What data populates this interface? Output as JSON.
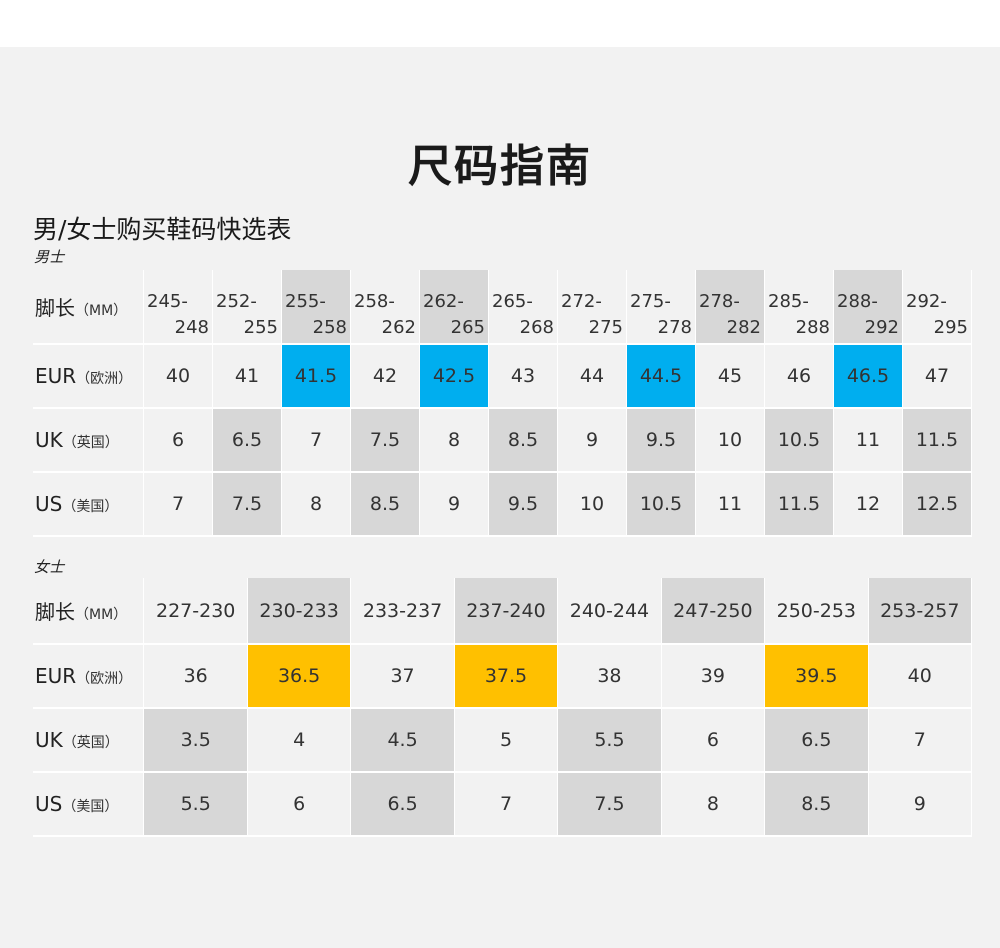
{
  "title": "尺码指南",
  "subtitle": "男/女士购买鞋码快选表",
  "men": {
    "label": "男士",
    "rows": [
      {
        "name": "脚长",
        "unit": "（MM）",
        "cells": [
          [
            "245-",
            "248"
          ],
          [
            "252-",
            "255"
          ],
          [
            "255-",
            "258"
          ],
          [
            "258-",
            "262"
          ],
          [
            "262-",
            "265"
          ],
          [
            "265-",
            "268"
          ],
          [
            "272-",
            "275"
          ],
          [
            "275-",
            "278"
          ],
          [
            "278-",
            "282"
          ],
          [
            "285-",
            "288"
          ],
          [
            "288-",
            "292"
          ],
          [
            "292-",
            "295"
          ]
        ]
      },
      {
        "name": "EUR",
        "unit": "（欧洲）",
        "cells": [
          "40",
          "41",
          "41.5",
          "42",
          "42.5",
          "43",
          "44",
          "44.5",
          "45",
          "46",
          "46.5",
          "47"
        ]
      },
      {
        "name": "UK",
        "unit": "（英国）",
        "cells": [
          "6",
          "6.5",
          "7",
          "7.5",
          "8",
          "8.5",
          "9",
          "9.5",
          "10",
          "10.5",
          "11",
          "11.5"
        ]
      },
      {
        "name": "US",
        "unit": "（美国）",
        "cells": [
          "7",
          "7.5",
          "8",
          "8.5",
          "9",
          "9.5",
          "10",
          "10.5",
          "11",
          "11.5",
          "12",
          "12.5"
        ]
      }
    ]
  },
  "women": {
    "label": "女士",
    "rows": [
      {
        "name": "脚长",
        "unit": "（MM）",
        "cells": [
          "227-230",
          "230-233",
          "233-237",
          "237-240",
          "240-244",
          "247-250",
          "250-253",
          "253-257"
        ]
      },
      {
        "name": "EUR",
        "unit": "（欧洲）",
        "cells": [
          "36",
          "36.5",
          "37",
          "37.5",
          "38",
          "39",
          "39.5",
          "40"
        ]
      },
      {
        "name": "UK",
        "unit": "（英国）",
        "cells": [
          "3.5",
          "4",
          "4.5",
          "5",
          "5.5",
          "6",
          "6.5",
          "7"
        ]
      },
      {
        "name": "US",
        "unit": "（美国）",
        "cells": [
          "5.5",
          "6",
          "6.5",
          "7",
          "7.5",
          "8",
          "8.5",
          "9"
        ]
      }
    ]
  },
  "colors": {
    "panel": "#f2f2f2",
    "shaded": "#d7d7d7",
    "men_highlight": "#00aeef",
    "women_highlight": "#ffc000"
  }
}
